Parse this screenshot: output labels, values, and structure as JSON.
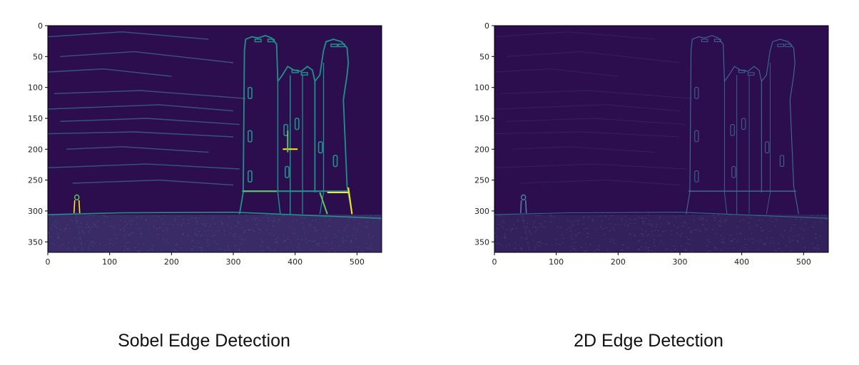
{
  "panels": [
    {
      "id": "sobel",
      "caption": "Sobel Edge Detection",
      "image_description_ref": "edge map of a castle tower on a hill with a small standing figure; edges in bright yellow-green on dark purple",
      "edge_intensity": "strong",
      "x_ticks": [
        "0",
        "100",
        "200",
        "300",
        "400",
        "500"
      ],
      "y_ticks": [
        "0",
        "50",
        "100",
        "150",
        "200",
        "250",
        "300",
        "350"
      ]
    },
    {
      "id": "2d",
      "caption": "2D Edge Detection",
      "edge_intensity": "faint",
      "x_ticks": [
        "0",
        "100",
        "200",
        "300",
        "400",
        "500"
      ],
      "y_ticks": [
        "0",
        "50",
        "100",
        "150",
        "200",
        "250",
        "300",
        "350"
      ]
    }
  ],
  "colors": {
    "background": "#2c0d4e",
    "edge_dim": "#3a5b8c",
    "edge_mid": "#21918c",
    "edge_bright": "#5ec962",
    "edge_peak": "#fde725"
  }
}
